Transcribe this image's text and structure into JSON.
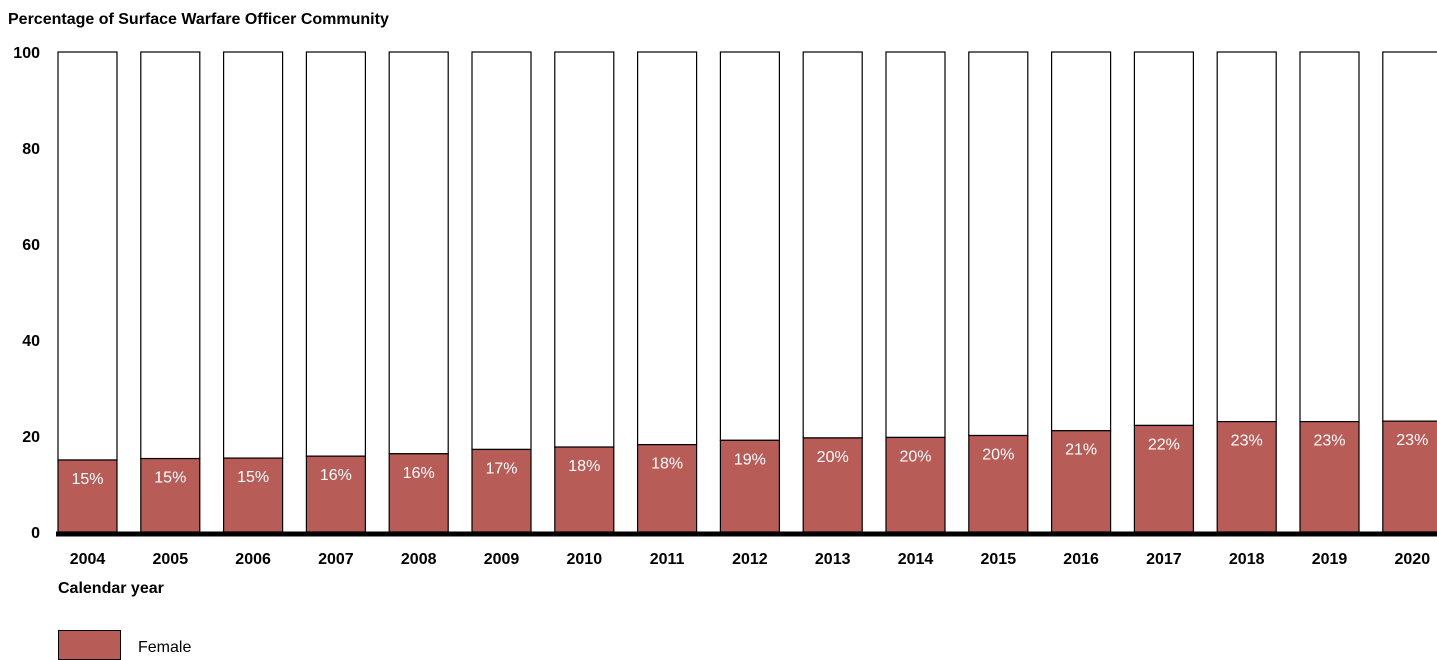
{
  "chart_data": {
    "type": "bar",
    "stacked": true,
    "title": "Percentage of Surface Warfare Officer Community",
    "xlabel": "Calendar year",
    "ylabel": "",
    "ylim": [
      0,
      100
    ],
    "yticks": [
      "0",
      "20",
      "40",
      "60",
      "80",
      "100"
    ],
    "grid": false,
    "legend": {
      "position": "bottom-left",
      "entries": [
        "Female"
      ]
    },
    "categories": [
      "2004",
      "2005",
      "2006",
      "2007",
      "2008",
      "2009",
      "2010",
      "2011",
      "2012",
      "2013",
      "2014",
      "2015",
      "2016",
      "2017",
      "2018",
      "2019",
      "2020"
    ],
    "series": [
      {
        "name": "Female",
        "color": "#b85c58",
        "values": [
          15,
          15.3,
          15.4,
          15.8,
          16.3,
          17.2,
          17.7,
          18.2,
          19.1,
          19.6,
          19.7,
          20.1,
          21.1,
          22.2,
          23.0,
          23.0,
          23.1
        ],
        "labels": [
          "15%",
          "15%",
          "15%",
          "16%",
          "16%",
          "17%",
          "18%",
          "18%",
          "19%",
          "20%",
          "20%",
          "20%",
          "21%",
          "22%",
          "23%",
          "23%",
          "23%"
        ]
      }
    ],
    "remainder_color": "#ffffff"
  }
}
